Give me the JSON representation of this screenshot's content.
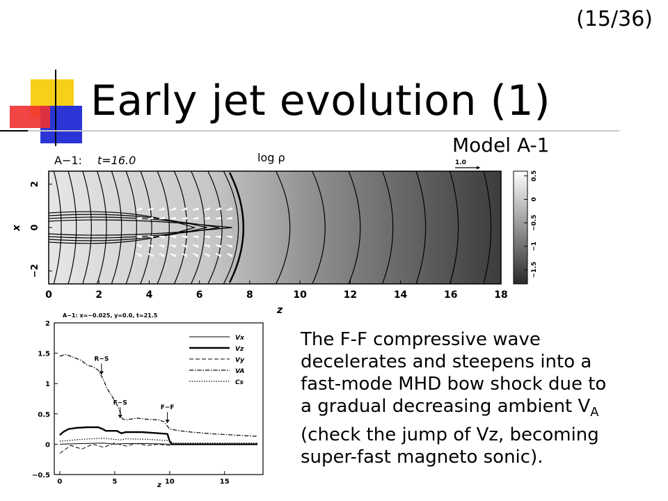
{
  "slide": {
    "page_number": "(15/36)",
    "title": "Early jet evolution (1)",
    "model_label": "Model A-1",
    "body": {
      "line1": "The F-F compressive wave",
      "line2": "decelerates and steepens into a",
      "line3": "fast-mode MHD bow shock due to",
      "line4_prefix": "a gradual decreasing ambient V",
      "line4_sub": "A",
      "line5": "(check the jump of Vz, becoming",
      "line6": "super-fast magneto sonic)."
    },
    "colors": {
      "deco_yellow": "#f7d01a",
      "deco_blue": "#2b35d6",
      "deco_red": "#f03030"
    }
  },
  "chart_data": [
    {
      "type": "heatmap",
      "panel_label": "A−1:",
      "time_label": "t=16.0",
      "title": "log ρ",
      "xlabel": "z",
      "ylabel": "x",
      "x_ticks": [
        "0",
        "2",
        "4",
        "6",
        "8",
        "10",
        "12",
        "14",
        "16",
        "18"
      ],
      "y_ticks": [
        "2",
        "0",
        "−2"
      ],
      "xlim": [
        0,
        18
      ],
      "ylim": [
        -2.6,
        2.6
      ],
      "vector_scale_label": "1.0",
      "colorbar_ticks": [
        "0.5",
        "0",
        "−0.5",
        "−1",
        "−1.5"
      ],
      "colorbar_range": [
        -1.8,
        0.6
      ]
    },
    {
      "type": "line",
      "title": "A−1: x=−0.025, y=0.0, t=21.5",
      "xlabel": "z",
      "x_ticks": [
        "0",
        "5",
        "10",
        "15"
      ],
      "y_ticks": [
        "2",
        "1.5",
        "1",
        "0.5",
        "0",
        "−0.5"
      ],
      "xlim": [
        -0.5,
        18.5
      ],
      "ylim": [
        -0.5,
        2
      ],
      "annotations": [
        {
          "label": "R−S",
          "x": 3.8,
          "y": 1.1
        },
        {
          "label": "F−S",
          "x": 5.5,
          "y": 0.38
        },
        {
          "label": "F−F",
          "x": 9.8,
          "y": 0.3
        }
      ],
      "legend": [
        "Vx",
        "Vz",
        "Vy",
        "VA",
        "Cs"
      ],
      "series": [
        {
          "name": "Vx",
          "style": "thin-solid",
          "x": [
            0,
            2,
            4,
            5,
            6,
            8,
            10,
            10.2,
            12,
            15,
            18
          ],
          "y": [
            0,
            0.01,
            0.02,
            0.0,
            0.01,
            0.01,
            0.0,
            0,
            0,
            0,
            0
          ]
        },
        {
          "name": "Vz",
          "style": "thick-solid",
          "x": [
            0,
            0.3,
            0.8,
            1.5,
            2.5,
            3.5,
            3.9,
            4.2,
            5.2,
            5.6,
            6.0,
            7.5,
            9.0,
            9.8,
            10.0,
            10.2,
            12,
            15,
            18
          ],
          "y": [
            0.15,
            0.2,
            0.25,
            0.27,
            0.28,
            0.28,
            0.25,
            0.22,
            0.22,
            0.18,
            0.2,
            0.2,
            0.18,
            0.17,
            0.05,
            0,
            0,
            0,
            0
          ]
        },
        {
          "name": "Vy",
          "style": "dashed",
          "x": [
            0,
            1,
            2,
            3,
            4,
            5,
            6,
            7,
            8,
            9,
            10,
            10.2,
            12,
            15,
            18
          ],
          "y": [
            -0.15,
            -0.02,
            -0.08,
            0.0,
            -0.05,
            0.02,
            -0.03,
            0.01,
            -0.02,
            0.0,
            -0.02,
            0,
            0,
            0,
            0
          ]
        },
        {
          "name": "VA",
          "style": "dash-dot",
          "x": [
            0,
            0.5,
            1,
            2,
            2.5,
            3,
            3.5,
            3.8,
            4.0,
            4.3,
            5.0,
            5.4,
            5.7,
            6.0,
            7,
            8,
            9,
            9.5,
            10,
            11,
            12,
            14,
            16,
            18
          ],
          "y": [
            1.45,
            1.48,
            1.45,
            1.38,
            1.3,
            1.28,
            1.22,
            1.12,
            1.05,
            0.92,
            0.72,
            0.58,
            0.42,
            0.4,
            0.43,
            0.41,
            0.4,
            0.37,
            0.25,
            0.22,
            0.2,
            0.17,
            0.15,
            0.13
          ]
        },
        {
          "name": "Cs",
          "style": "dotted",
          "x": [
            0,
            2,
            4,
            5.5,
            6,
            8,
            10,
            10.3,
            12,
            15,
            18
          ],
          "y": [
            0.05,
            0.08,
            0.1,
            0.07,
            0.09,
            0.08,
            0.06,
            0.02,
            0.02,
            0.02,
            0.02
          ]
        }
      ]
    }
  ]
}
